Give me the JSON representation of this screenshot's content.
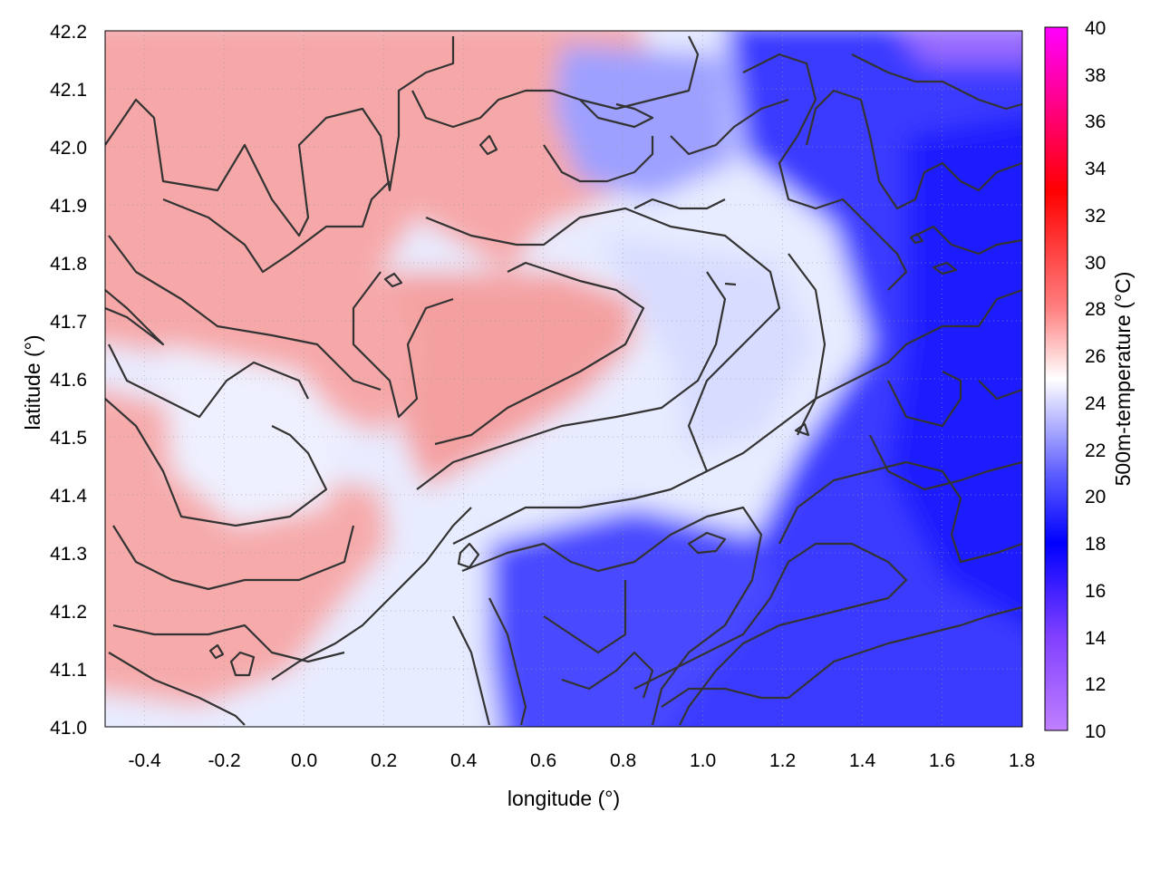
{
  "chart_data": {
    "type": "heatmap",
    "title": "",
    "xlabel": "longitude (°)",
    "ylabel": "latitude (°)",
    "colorbar_label": "500m-temperature (°C)",
    "xlim": [
      -0.5,
      1.8
    ],
    "ylim": [
      41.0,
      42.2
    ],
    "x_ticks": [
      "-0.4",
      "-0.2",
      "0.0",
      "0.2",
      "0.4",
      "0.6",
      "0.8",
      "1.0",
      "1.2",
      "1.4",
      "1.6",
      "1.8"
    ],
    "y_ticks": [
      "41.0",
      "41.1",
      "41.2",
      "41.3",
      "41.4",
      "41.5",
      "41.6",
      "41.7",
      "41.8",
      "41.9",
      "42.0",
      "42.1",
      "42.2"
    ],
    "colorbar_range": [
      10,
      40
    ],
    "colorbar_ticks": [
      "10",
      "12",
      "14",
      "16",
      "18",
      "20",
      "22",
      "24",
      "26",
      "28",
      "30",
      "32",
      "34",
      "36",
      "38",
      "40"
    ],
    "colorscale": [
      {
        "value": 10,
        "color": "#c080ff"
      },
      {
        "value": 14,
        "color": "#8040ff"
      },
      {
        "value": 18,
        "color": "#0000ff"
      },
      {
        "value": 21,
        "color": "#6060ff"
      },
      {
        "value": 25,
        "color": "#ffffff"
      },
      {
        "value": 28,
        "color": "#ff8080"
      },
      {
        "value": 33,
        "color": "#ff0000"
      },
      {
        "value": 40,
        "color": "#ff00ff"
      }
    ],
    "grid": true,
    "contours": true
  }
}
